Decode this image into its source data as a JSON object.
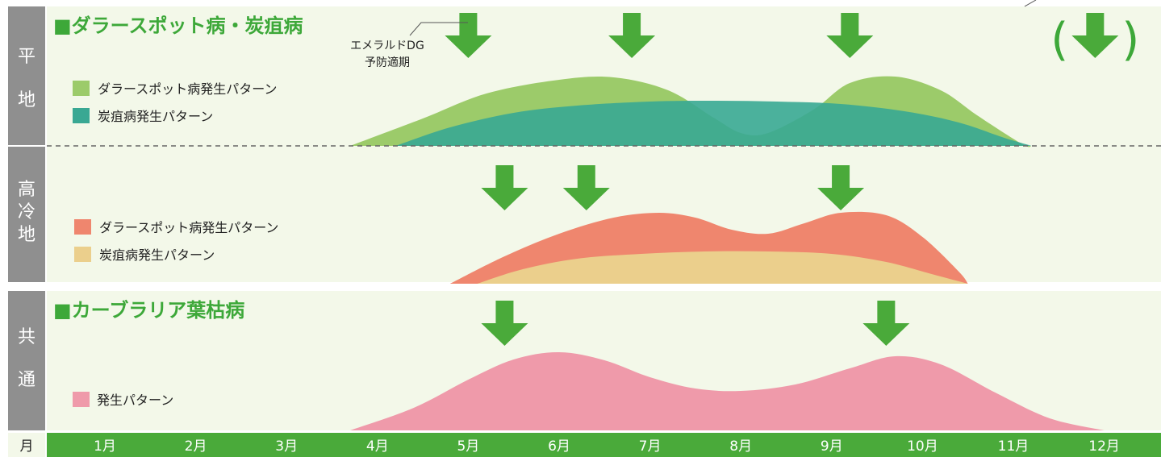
{
  "months_header": "月",
  "months": [
    "1月",
    "2月",
    "3月",
    "4月",
    "5月",
    "6月",
    "7月",
    "8月",
    "9月",
    "10月",
    "11月",
    "12月"
  ],
  "colors": {
    "panel_bg": "#f3f8e9",
    "side_bar": "#8f8f8f",
    "month_bar": "#4aaa3a",
    "arrow": "#4aaa3a",
    "title_green": "#3da839"
  },
  "sections": {
    "flat": {
      "side_label": [
        "平",
        "地"
      ],
      "title": "■ダラースポット病・炭疽病",
      "annotation": [
        "エメラルドDG",
        "予防適期"
      ],
      "legend": [
        {
          "label": "ダラースポット病発生パターン",
          "color": "#9ccb6a"
        },
        {
          "label": "炭疽病発生パターン",
          "color": "#39a893"
        }
      ]
    },
    "highland": {
      "side_label": [
        "高",
        "冷",
        "地"
      ],
      "legend": [
        {
          "label": "ダラースポット病発生パターン",
          "color": "#ef866e"
        },
        {
          "label": "炭疽病発生パターン",
          "color": "#ebcf8c"
        }
      ]
    },
    "common": {
      "side_label": [
        "共",
        "通"
      ],
      "title": "■カーブラリア葉枯病",
      "legend": [
        {
          "label": "発生パターン",
          "color": "#ef9aaa"
        }
      ]
    }
  },
  "chart_data": [
    {
      "type": "area",
      "section": "平地",
      "xlabel": "月",
      "xlim": [
        0.5,
        12.5
      ],
      "ylim": [
        0,
        1
      ],
      "series": [
        {
          "name": "ダラースポット病発生パターン",
          "color": "#9ccb6a",
          "x": [
            3.7,
            4.5,
            5.2,
            6.0,
            6.6,
            7.2,
            7.7,
            8.0,
            8.3,
            8.8,
            9.2,
            9.7,
            10.2,
            10.6,
            11.1,
            11.2
          ],
          "y": [
            0.0,
            0.34,
            0.65,
            0.82,
            0.85,
            0.69,
            0.35,
            0.16,
            0.16,
            0.45,
            0.78,
            0.86,
            0.69,
            0.38,
            0.02,
            0.0
          ]
        },
        {
          "name": "炭疽病発生パターン",
          "color": "#39a893",
          "x": [
            4.2,
            4.8,
            5.5,
            6.2,
            7.0,
            7.7,
            8.4,
            9.1,
            9.8,
            10.4,
            10.9,
            11.2
          ],
          "y": [
            0.0,
            0.23,
            0.41,
            0.5,
            0.55,
            0.56,
            0.55,
            0.52,
            0.43,
            0.29,
            0.1,
            0.0
          ]
        }
      ],
      "arrows_x": [
        5.0,
        6.8,
        9.2,
        11.9
      ],
      "arrow_in_parentheses_x": 11.9
    },
    {
      "type": "area",
      "section": "高冷地",
      "xlabel": "月",
      "xlim": [
        0.5,
        12.5
      ],
      "ylim": [
        0,
        1
      ],
      "series": [
        {
          "name": "ダラースポット病発生パターン",
          "color": "#ef866e",
          "x": [
            4.8,
            5.4,
            6.0,
            6.6,
            7.1,
            7.5,
            7.9,
            8.3,
            8.7,
            9.1,
            9.6,
            10.0,
            10.4,
            10.5
          ],
          "y": [
            0.0,
            0.34,
            0.62,
            0.82,
            0.88,
            0.82,
            0.67,
            0.62,
            0.75,
            0.88,
            0.85,
            0.58,
            0.15,
            0.0
          ]
        },
        {
          "name": "炭疽病発生パターン",
          "color": "#ebcf8c",
          "x": [
            5.1,
            5.6,
            6.2,
            6.9,
            7.6,
            8.3,
            9.0,
            9.6,
            10.1,
            10.5
          ],
          "y": [
            0.0,
            0.18,
            0.31,
            0.37,
            0.4,
            0.4,
            0.37,
            0.27,
            0.12,
            0.0
          ]
        }
      ],
      "arrows_x": [
        5.4,
        6.3,
        9.1
      ]
    },
    {
      "type": "area",
      "section": "共通",
      "xlabel": "月",
      "xlim": [
        0.5,
        12.5
      ],
      "ylim": [
        0,
        1
      ],
      "series": [
        {
          "name": "発生パターン",
          "color": "#ef9aaa",
          "x": [
            3.7,
            4.4,
            5.0,
            5.5,
            6.0,
            6.5,
            7.0,
            7.5,
            8.0,
            8.6,
            9.2,
            9.7,
            10.2,
            10.8,
            11.4,
            12.0
          ],
          "y": [
            0.0,
            0.28,
            0.63,
            0.88,
            0.97,
            0.87,
            0.66,
            0.52,
            0.49,
            0.57,
            0.77,
            0.92,
            0.82,
            0.47,
            0.15,
            0.0
          ]
        }
      ],
      "arrows_x": [
        5.4,
        9.6
      ]
    }
  ]
}
